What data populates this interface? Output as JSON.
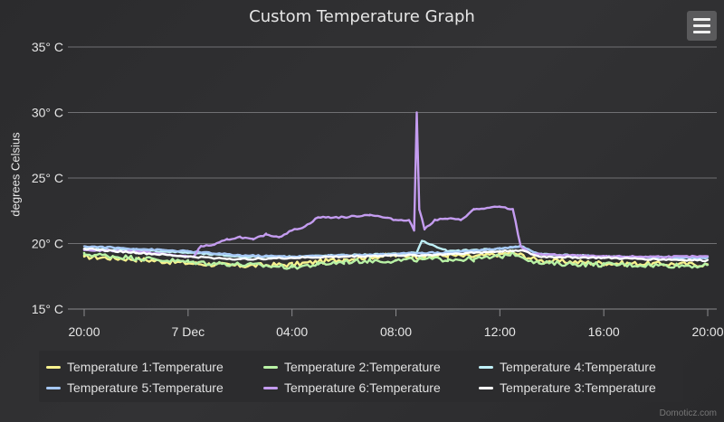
{
  "chart_data": {
    "type": "line",
    "title": "Custom Temperature Graph",
    "ylabel": "degrees Celsius",
    "xlabel": "",
    "ylim": [
      15,
      35
    ],
    "yticks": [
      15,
      20,
      25,
      30,
      35
    ],
    "ytick_labels": [
      "15° C",
      "20° C",
      "25° C",
      "30° C",
      "35° C"
    ],
    "xlim": [
      0,
      24
    ],
    "xtick_labels": [
      "20:00",
      "7 Dec",
      "04:00",
      "08:00",
      "12:00",
      "16:00",
      "20:00"
    ],
    "xtick_values": [
      0,
      4,
      8,
      12,
      16,
      20,
      24
    ],
    "x_unit": "hours since 20:00 (6 Dec)",
    "grid": true,
    "legend_position": "bottom",
    "series": [
      {
        "name": "Temperature 1:Temperature",
        "color": "#f7f18e",
        "x": [
          0,
          2,
          4,
          6,
          8,
          9,
          10,
          11,
          12,
          13,
          14,
          15,
          16,
          16.5,
          17.5,
          20,
          24
        ],
        "y": [
          19.0,
          18.8,
          18.5,
          18.3,
          18.4,
          18.6,
          18.8,
          19.0,
          19.1,
          19.0,
          19.1,
          19.0,
          19.2,
          19.3,
          18.7,
          18.5,
          18.4
        ]
      },
      {
        "name": "Temperature 2:Temperature",
        "color": "#b9f2a5",
        "x": [
          0,
          2,
          4,
          6,
          8,
          9,
          10,
          11,
          12,
          13,
          14,
          15,
          16,
          16.5,
          17.5,
          20,
          24
        ],
        "y": [
          19.2,
          18.9,
          18.6,
          18.4,
          18.2,
          18.4,
          18.6,
          18.7,
          18.7,
          18.8,
          18.8,
          18.8,
          19.0,
          19.3,
          18.5,
          18.4,
          18.3
        ]
      },
      {
        "name": "Temperature 4:Temperature",
        "color": "#bff0f7",
        "x": [
          0,
          2,
          4,
          6,
          8,
          10,
          12,
          12.8,
          13,
          14,
          16,
          16.8,
          17.5,
          20,
          24
        ],
        "y": [
          19.6,
          19.5,
          19.3,
          19.0,
          19.0,
          19.1,
          19.2,
          19.3,
          20.2,
          19.4,
          19.6,
          19.8,
          19.2,
          19.0,
          18.9
        ]
      },
      {
        "name": "Temperature 5:Temperature",
        "color": "#a6c8f5",
        "x": [
          0,
          2,
          4,
          6,
          8,
          10,
          12,
          13,
          14,
          16,
          16.8,
          17.5,
          20,
          24
        ],
        "y": [
          19.8,
          19.6,
          19.4,
          19.1,
          19.0,
          19.1,
          19.2,
          19.3,
          19.3,
          19.6,
          19.8,
          19.2,
          19.0,
          18.9
        ]
      },
      {
        "name": "Temperature 6:Temperature",
        "color": "#c49cf0",
        "x": [
          0,
          2,
          4,
          4.2,
          4.5,
          5,
          5.5,
          6,
          6.5,
          7,
          7.5,
          8,
          8.5,
          9,
          10,
          11,
          12,
          12.5,
          12.7,
          12.8,
          12.9,
          13.1,
          13.5,
          14,
          14.5,
          15,
          16,
          16.5,
          16.8,
          17.2,
          20,
          24
        ],
        "y": [
          19.5,
          19.4,
          19.0,
          19.0,
          19.8,
          19.9,
          20.3,
          20.5,
          20.3,
          20.7,
          20.5,
          21.0,
          21.3,
          22.0,
          22.0,
          22.2,
          21.8,
          21.8,
          21.0,
          30.0,
          22.6,
          21.1,
          21.8,
          21.9,
          21.8,
          22.6,
          22.8,
          22.6,
          19.8,
          19.2,
          19.0,
          19.0
        ]
      },
      {
        "name": "Temperature 3:Temperature",
        "color": "#ffffff",
        "x": [
          0,
          2,
          4,
          6,
          8,
          10,
          12,
          13,
          14,
          16,
          16.8,
          17.5,
          20,
          24
        ],
        "y": [
          19.6,
          19.3,
          19.0,
          18.8,
          18.9,
          19.0,
          19.1,
          19.1,
          19.2,
          19.4,
          19.5,
          19.0,
          18.9,
          18.7
        ]
      }
    ]
  },
  "header": {
    "menu_icon": "hamburger-menu-icon"
  },
  "credits": "Domoticz.com"
}
